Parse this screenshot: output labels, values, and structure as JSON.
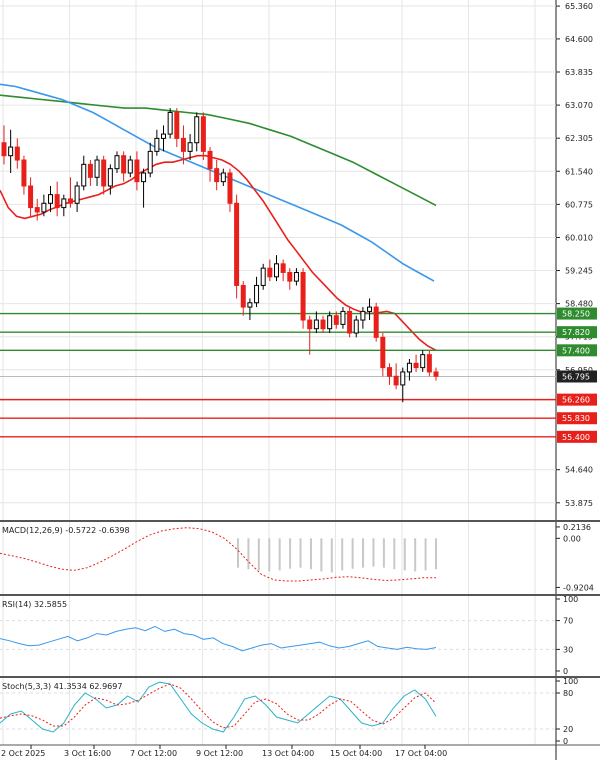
{
  "chart_data": {
    "type": "candlestick",
    "instrument_note": "",
    "colors": {
      "bull": "#000000",
      "bear": "#e8201b",
      "ma_fast": "#e8201b",
      "ma_mid": "#3a98ea",
      "ma_slow": "#2e8b2e",
      "support": "#e8201b",
      "resistance": "#2e8b2e",
      "grid": "#e6e6e6",
      "current": "#222222"
    },
    "price_axis": {
      "ylim": [
        53.5,
        65.5
      ],
      "ticks": [
        "65.360",
        "64.600",
        "63.835",
        "63.070",
        "62.305",
        "61.540",
        "60.775",
        "60.010",
        "59.245",
        "58.480",
        "57.715",
        "56.950",
        "54.640",
        "53.875"
      ]
    },
    "time_axis": [
      "2 Oct 2025",
      "3 Oct 16:00",
      "7 Oct 12:00",
      "9 Oct 12:00",
      "13 Oct 04:00",
      "15 Oct 04:00",
      "17 Oct 04:00"
    ],
    "levels": {
      "resistance": [
        "58.250",
        "57.820",
        "57.400"
      ],
      "support": [
        "56.260",
        "55.830",
        "55.400"
      ],
      "current": "56.795"
    },
    "candles": [
      {
        "o": 62.2,
        "h": 62.6,
        "l": 61.7,
        "c": 61.9
      },
      {
        "o": 61.9,
        "h": 62.5,
        "l": 61.5,
        "c": 62.1
      },
      {
        "o": 62.1,
        "h": 62.3,
        "l": 61.6,
        "c": 61.8
      },
      {
        "o": 61.8,
        "h": 61.9,
        "l": 61.0,
        "c": 61.2
      },
      {
        "o": 61.2,
        "h": 61.4,
        "l": 60.5,
        "c": 60.7
      },
      {
        "o": 60.7,
        "h": 60.9,
        "l": 60.4,
        "c": 60.6
      },
      {
        "o": 60.6,
        "h": 61.0,
        "l": 60.5,
        "c": 60.8
      },
      {
        "o": 60.8,
        "h": 61.2,
        "l": 60.6,
        "c": 61.0
      },
      {
        "o": 61.0,
        "h": 61.3,
        "l": 60.5,
        "c": 60.7
      },
      {
        "o": 60.7,
        "h": 61.0,
        "l": 60.5,
        "c": 60.9
      },
      {
        "o": 60.9,
        "h": 61.4,
        "l": 60.7,
        "c": 60.8
      },
      {
        "o": 60.8,
        "h": 61.3,
        "l": 60.6,
        "c": 61.2
      },
      {
        "o": 61.2,
        "h": 61.9,
        "l": 61.1,
        "c": 61.7
      },
      {
        "o": 61.7,
        "h": 61.8,
        "l": 61.2,
        "c": 61.4
      },
      {
        "o": 61.4,
        "h": 61.9,
        "l": 61.2,
        "c": 61.8
      },
      {
        "o": 61.8,
        "h": 61.9,
        "l": 61.0,
        "c": 61.2
      },
      {
        "o": 61.2,
        "h": 61.7,
        "l": 61.0,
        "c": 61.6
      },
      {
        "o": 61.6,
        "h": 62.0,
        "l": 61.5,
        "c": 61.9
      },
      {
        "o": 61.9,
        "h": 62.0,
        "l": 61.3,
        "c": 61.5
      },
      {
        "o": 61.5,
        "h": 61.9,
        "l": 61.4,
        "c": 61.8
      },
      {
        "o": 61.8,
        "h": 62.0,
        "l": 61.1,
        "c": 61.3
      },
      {
        "o": 61.3,
        "h": 61.6,
        "l": 60.7,
        "c": 61.5
      },
      {
        "o": 61.5,
        "h": 62.2,
        "l": 61.4,
        "c": 62.0
      },
      {
        "o": 62.0,
        "h": 62.5,
        "l": 61.9,
        "c": 62.3
      },
      {
        "o": 62.3,
        "h": 62.6,
        "l": 62.0,
        "c": 62.4
      },
      {
        "o": 62.4,
        "h": 63.0,
        "l": 62.3,
        "c": 62.9
      },
      {
        "o": 62.9,
        "h": 63.0,
        "l": 62.1,
        "c": 62.3
      },
      {
        "o": 62.3,
        "h": 62.6,
        "l": 61.7,
        "c": 62.0
      },
      {
        "o": 62.0,
        "h": 62.4,
        "l": 61.8,
        "c": 62.2
      },
      {
        "o": 62.2,
        "h": 62.9,
        "l": 62.0,
        "c": 62.8
      },
      {
        "o": 62.8,
        "h": 62.9,
        "l": 61.8,
        "c": 62.0
      },
      {
        "o": 62.0,
        "h": 62.1,
        "l": 61.3,
        "c": 61.6
      },
      {
        "o": 61.6,
        "h": 61.8,
        "l": 61.1,
        "c": 61.3
      },
      {
        "o": 61.3,
        "h": 61.6,
        "l": 61.2,
        "c": 61.5
      },
      {
        "o": 61.5,
        "h": 61.6,
        "l": 60.6,
        "c": 60.8
      },
      {
        "o": 60.8,
        "h": 61.0,
        "l": 58.6,
        "c": 58.9
      },
      {
        "o": 58.9,
        "h": 59.0,
        "l": 58.2,
        "c": 58.4
      },
      {
        "o": 58.4,
        "h": 58.6,
        "l": 58.1,
        "c": 58.5
      },
      {
        "o": 58.5,
        "h": 59.1,
        "l": 58.4,
        "c": 58.9
      },
      {
        "o": 58.9,
        "h": 59.4,
        "l": 58.8,
        "c": 59.3
      },
      {
        "o": 59.3,
        "h": 59.5,
        "l": 59.0,
        "c": 59.1
      },
      {
        "o": 59.1,
        "h": 59.6,
        "l": 59.0,
        "c": 59.4
      },
      {
        "o": 59.4,
        "h": 59.5,
        "l": 59.0,
        "c": 59.2
      },
      {
        "o": 59.2,
        "h": 59.3,
        "l": 58.8,
        "c": 59.0
      },
      {
        "o": 59.0,
        "h": 59.3,
        "l": 58.9,
        "c": 59.2
      },
      {
        "o": 59.2,
        "h": 59.3,
        "l": 57.9,
        "c": 58.1
      },
      {
        "o": 58.1,
        "h": 58.2,
        "l": 57.3,
        "c": 57.9
      },
      {
        "o": 57.9,
        "h": 58.3,
        "l": 57.8,
        "c": 58.1
      },
      {
        "o": 58.1,
        "h": 58.2,
        "l": 57.8,
        "c": 57.9
      },
      {
        "o": 57.9,
        "h": 58.3,
        "l": 57.8,
        "c": 58.2
      },
      {
        "o": 58.2,
        "h": 58.3,
        "l": 57.9,
        "c": 58.0
      },
      {
        "o": 58.0,
        "h": 58.4,
        "l": 57.9,
        "c": 58.3
      },
      {
        "o": 58.3,
        "h": 58.4,
        "l": 57.7,
        "c": 57.8
      },
      {
        "o": 57.8,
        "h": 58.2,
        "l": 57.7,
        "c": 58.1
      },
      {
        "o": 58.1,
        "h": 58.4,
        "l": 57.9,
        "c": 58.3
      },
      {
        "o": 58.3,
        "h": 58.6,
        "l": 58.1,
        "c": 58.4
      },
      {
        "o": 58.4,
        "h": 58.5,
        "l": 57.6,
        "c": 57.7
      },
      {
        "o": 57.7,
        "h": 57.8,
        "l": 56.8,
        "c": 57.0
      },
      {
        "o": 57.0,
        "h": 57.1,
        "l": 56.6,
        "c": 56.8
      },
      {
        "o": 56.8,
        "h": 57.1,
        "l": 56.5,
        "c": 56.6
      },
      {
        "o": 56.6,
        "h": 57.0,
        "l": 56.2,
        "c": 56.9
      },
      {
        "o": 56.9,
        "h": 57.2,
        "l": 56.7,
        "c": 57.1
      },
      {
        "o": 57.1,
        "h": 57.3,
        "l": 56.9,
        "c": 57.0
      },
      {
        "o": 57.0,
        "h": 57.4,
        "l": 56.9,
        "c": 57.3
      },
      {
        "o": 57.3,
        "h": 57.4,
        "l": 56.8,
        "c": 56.9
      },
      {
        "o": 56.9,
        "h": 57.0,
        "l": 56.7,
        "c": 56.8
      }
    ],
    "ma_fast": [
      61.1,
      60.7,
      60.5,
      60.45,
      60.5,
      60.55,
      60.65,
      60.72,
      60.8,
      60.85,
      60.9,
      60.95,
      61.0,
      61.1,
      61.2,
      61.25,
      61.35,
      61.5,
      61.6,
      61.7,
      61.75,
      61.75,
      61.8,
      61.85,
      61.9,
      61.9,
      61.85,
      61.8,
      61.7,
      61.55,
      61.35,
      61.1,
      60.85,
      60.55,
      60.25,
      59.95,
      59.7,
      59.45,
      59.2,
      59.0,
      58.8,
      58.6,
      58.45,
      58.35,
      58.28,
      58.25,
      58.27,
      58.3,
      58.25,
      58.05,
      57.85,
      57.65,
      57.5,
      57.4
    ],
    "ma_mid": [
      63.55,
      63.5,
      63.4,
      63.3,
      63.2,
      63.05,
      62.9,
      62.7,
      62.5,
      62.3,
      62.1,
      61.95,
      61.8,
      61.65,
      61.5,
      61.35,
      61.2,
      61.05,
      60.9,
      60.75,
      60.6,
      60.45,
      60.3,
      60.1,
      59.9,
      59.65,
      59.4,
      59.2,
      59.0
    ],
    "ma_slow": [
      63.3,
      63.25,
      63.2,
      63.15,
      63.1,
      63.05,
      63.0,
      63.0,
      62.95,
      62.9,
      62.85,
      62.75,
      62.65,
      62.5,
      62.35,
      62.15,
      61.95,
      61.75,
      61.5,
      61.25,
      61.0,
      60.75
    ],
    "macd": {
      "label": "MACD(12,26,9) -0.5722 -0.6398",
      "ticks": [
        "0.2136",
        "0.00",
        "-0.9204"
      ],
      "ylim": [
        -0.95,
        0.25
      ],
      "histogram": [
        -0.55,
        -0.58,
        -0.6,
        -0.62,
        -0.6,
        -0.57,
        -0.55,
        -0.58,
        -0.62,
        -0.64,
        -0.6,
        -0.57,
        -0.55,
        -0.53,
        -0.55,
        -0.58,
        -0.6,
        -0.62,
        -0.6,
        -0.58
      ],
      "signal": [
        -0.28,
        -0.33,
        -0.38,
        -0.45,
        -0.52,
        -0.58,
        -0.6,
        -0.55,
        -0.45,
        -0.33,
        -0.2,
        -0.06,
        0.06,
        0.14,
        0.18,
        0.2,
        0.18,
        0.12,
        0.0,
        -0.2,
        -0.45,
        -0.68,
        -0.78,
        -0.8,
        -0.8,
        -0.78,
        -0.76,
        -0.73,
        -0.72,
        -0.74,
        -0.77,
        -0.79,
        -0.78,
        -0.76,
        -0.74,
        -0.74
      ]
    },
    "rsi": {
      "label": "RSI(14) 32.5855",
      "ticks": [
        "100",
        "70",
        "30",
        "0"
      ],
      "ylim": [
        0,
        100
      ],
      "values": [
        45,
        42,
        38,
        35,
        36,
        40,
        44,
        48,
        42,
        46,
        52,
        50,
        55,
        58,
        60,
        56,
        62,
        55,
        58,
        52,
        50,
        44,
        46,
        38,
        34,
        28,
        32,
        36,
        38,
        32,
        34,
        36,
        38,
        40,
        35,
        32,
        34,
        38,
        42,
        34,
        32,
        30,
        33,
        31,
        30,
        32.6
      ]
    },
    "stoch": {
      "label": "Stoch(5,3,3) 41.3534 62.9697",
      "ticks": [
        "100",
        "80",
        "20",
        "0"
      ],
      "ylim": [
        0,
        100
      ],
      "k": [
        30,
        45,
        50,
        35,
        20,
        15,
        30,
        60,
        80,
        70,
        55,
        60,
        75,
        65,
        90,
        98,
        95,
        70,
        45,
        30,
        20,
        15,
        40,
        70,
        75,
        60,
        40,
        35,
        30,
        45,
        60,
        75,
        70,
        50,
        30,
        25,
        30,
        55,
        75,
        85,
        70,
        41
      ],
      "d": [
        38,
        42,
        45,
        42,
        35,
        25,
        25,
        40,
        60,
        72,
        68,
        60,
        62,
        68,
        78,
        88,
        95,
        88,
        70,
        50,
        32,
        22,
        25,
        45,
        65,
        70,
        62,
        45,
        35,
        35,
        45,
        60,
        70,
        66,
        50,
        35,
        28,
        38,
        55,
        72,
        80,
        63
      ]
    }
  }
}
